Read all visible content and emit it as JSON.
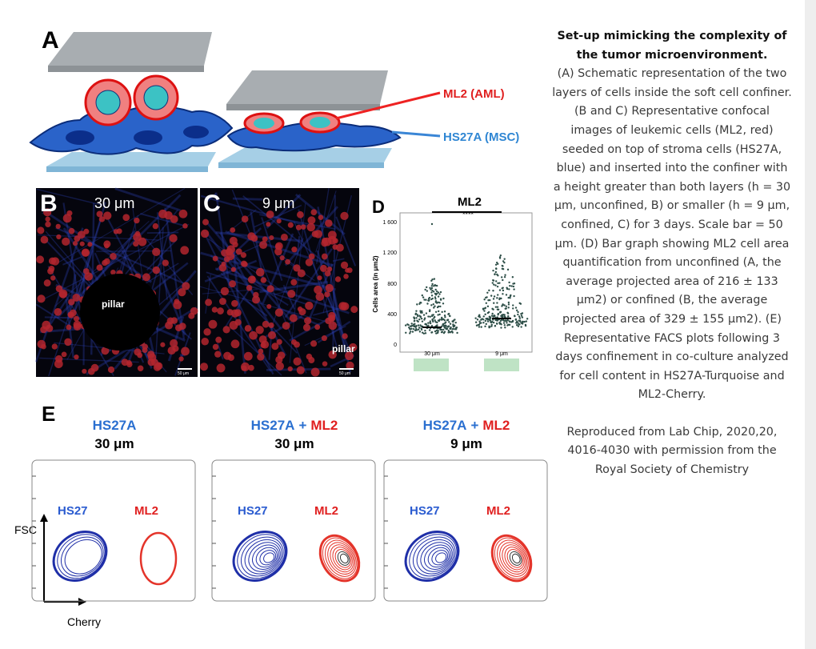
{
  "figure": {
    "panel_a": {
      "label": "A",
      "ml2_label": "ML2 (AML)",
      "hs27a_label": "HS27A (MSC)"
    },
    "panel_b": {
      "label": "B",
      "height": "30 μm",
      "pillar": "pillar",
      "scale_bar": "50 μm"
    },
    "panel_c": {
      "label": "C",
      "height": "9 μm",
      "pillar": "pillar",
      "scale_bar": "50 μm"
    },
    "panel_d": {
      "label": "D",
      "title": "ML2",
      "significance": "****",
      "y_axis_label": "Cells area (in μm2)",
      "y_ticks": [
        "1 600",
        "1 200",
        "800",
        "400",
        "0"
      ],
      "x_labels": [
        "30 μm",
        "9 μm"
      ]
    },
    "panel_e": {
      "label": "E",
      "y_axis": "FSC",
      "x_axis": "Cherry",
      "plots": [
        {
          "title_parts": [
            "HS27A"
          ],
          "height": "30 μm",
          "gate_left": "HS27",
          "gate_right": "ML2"
        },
        {
          "title_parts": [
            "HS27A",
            "+",
            "ML2"
          ],
          "height": "30 μm",
          "gate_left": "HS27",
          "gate_right": "ML2"
        },
        {
          "title_parts": [
            "HS27A",
            "+",
            "ML2"
          ],
          "height": "9 μm",
          "gate_left": "HS27",
          "gate_right": "ML2"
        }
      ]
    }
  },
  "caption": {
    "title": "Set-up mimicking the complexity of the tumor microenvironment.",
    "body": "(A) Schematic representation of the two layers of cells inside the soft cell confiner. (B and C) Representative confocal images of leukemic cells (ML2, red) seeded on top of stroma cells (HS27A, blue) and inserted into the confiner with a height greater than both layers (h = 30 μm, unconfined, B) or smaller (h = 9 μm, confined, C) for 3 days. Scale bar = 50 μm. (D) Bar graph showing ML2 cell area quantification from unconfined (A, the average projected area of 216 ± 133 μm2) or confined (B, the average projected area of 329 ± 155 μm2). (E) Representative FACS plots following 3 days confinement in co-culture analyzed for cell content in HS27A-Turquoise and ML2-Cherry.",
    "credit": "Reproduced from Lab Chip, 2020,20, 4016-4030 with permission from the Royal Society of Chemistry"
  }
}
